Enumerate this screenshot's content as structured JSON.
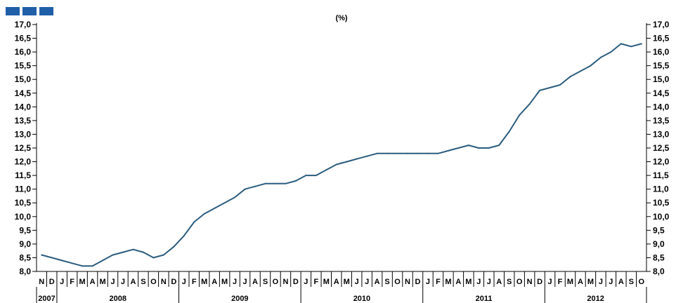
{
  "chart_data": {
    "type": "line",
    "unit_label": "(%)",
    "colors": {
      "line": "#2b5c7e",
      "axis": "#000000",
      "logo": "#1f5fa8"
    },
    "ylim": [
      8.0,
      17.0
    ],
    "ytick_step": 0.5,
    "y_tick_labels": [
      "8,0",
      "8,5",
      "9,0",
      "9,5",
      "10,0",
      "10,5",
      "11,0",
      "11,5",
      "12,0",
      "12,5",
      "13,0",
      "13,5",
      "14,0",
      "14,5",
      "15,0",
      "15,5",
      "16,0",
      "16,5",
      "17,0"
    ],
    "month_labels": [
      "N",
      "D",
      "J",
      "F",
      "M",
      "A",
      "M",
      "J",
      "J",
      "A",
      "S",
      "O",
      "N",
      "D",
      "J",
      "F",
      "M",
      "A",
      "M",
      "J",
      "J",
      "A",
      "S",
      "O",
      "N",
      "D",
      "J",
      "F",
      "M",
      "A",
      "M",
      "J",
      "J",
      "A",
      "S",
      "O",
      "N",
      "D",
      "J",
      "F",
      "M",
      "A",
      "M",
      "J",
      "J",
      "A",
      "S",
      "O",
      "N",
      "D",
      "J",
      "F",
      "M",
      "A",
      "M",
      "J",
      "J",
      "A",
      "S",
      "O"
    ],
    "years": [
      {
        "label": "2007",
        "start": 0,
        "count": 2
      },
      {
        "label": "2008",
        "start": 2,
        "count": 12
      },
      {
        "label": "2009",
        "start": 14,
        "count": 12
      },
      {
        "label": "2010",
        "start": 26,
        "count": 12
      },
      {
        "label": "2011",
        "start": 38,
        "count": 12
      },
      {
        "label": "2012",
        "start": 50,
        "count": 10
      }
    ],
    "series": [
      {
        "values": [
          8.6,
          8.5,
          8.4,
          8.3,
          8.2,
          8.2,
          8.4,
          8.6,
          8.7,
          8.8,
          8.7,
          8.5,
          8.6,
          8.9,
          9.3,
          9.8,
          10.1,
          10.3,
          10.5,
          10.7,
          11.0,
          11.1,
          11.2,
          11.2,
          11.2,
          11.3,
          11.5,
          11.5,
          11.7,
          11.9,
          12.0,
          12.1,
          12.2,
          12.3,
          12.3,
          12.3,
          12.3,
          12.3,
          12.3,
          12.3,
          12.4,
          12.5,
          12.6,
          12.5,
          12.5,
          12.6,
          13.1,
          13.7,
          14.1,
          14.6,
          14.7,
          14.8,
          15.1,
          15.3,
          15.5,
          15.8,
          16.0,
          16.3,
          16.2,
          16.3
        ]
      }
    ]
  }
}
